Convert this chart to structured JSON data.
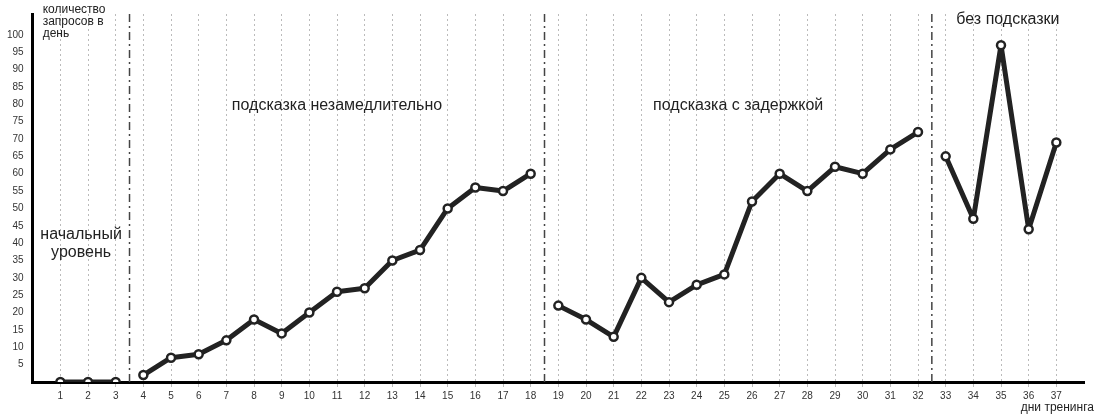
{
  "chart_data": {
    "type": "line",
    "xlabel": "дни тренинга",
    "ylabel": "количество запросов в день",
    "series": [
      {
        "color": "#222222",
        "x": [
          1,
          2,
          3
        ],
        "values": [
          0,
          0,
          0
        ]
      },
      {
        "color": "#222222",
        "x": [
          4,
          5,
          6,
          7,
          8,
          9,
          10,
          11,
          12,
          13,
          14,
          15,
          16,
          17,
          18
        ],
        "values": [
          2,
          7,
          8,
          12,
          18,
          14,
          20,
          26,
          27,
          35,
          38,
          50,
          56,
          55,
          60
        ]
      },
      {
        "color": "#222222",
        "x": [
          19,
          20,
          21,
          22,
          23,
          24,
          25,
          26,
          27,
          28,
          29,
          30,
          31,
          32
        ],
        "values": [
          22,
          18,
          13,
          30,
          23,
          28,
          31,
          52,
          60,
          55,
          62,
          60,
          67,
          72
        ]
      },
      {
        "color": "#222222",
        "x": [
          33,
          34,
          35,
          36,
          37
        ],
        "values": [
          65,
          47,
          97,
          44,
          69
        ]
      }
    ],
    "xlim": [
      0,
      38
    ],
    "xticks": [
      1,
      2,
      3,
      4,
      5,
      6,
      7,
      8,
      9,
      10,
      11,
      12,
      13,
      14,
      15,
      16,
      17,
      18,
      19,
      20,
      21,
      22,
      23,
      24,
      25,
      26,
      27,
      28,
      29,
      30,
      31,
      32,
      33,
      34,
      35,
      36,
      37
    ],
    "ylim": [
      0,
      106
    ],
    "yticks": [
      5,
      10,
      15,
      20,
      25,
      30,
      35,
      40,
      45,
      50,
      55,
      60,
      65,
      70,
      75,
      80,
      85,
      90,
      95,
      100
    ],
    "ref_lines": [
      {
        "axis": "x",
        "value": 3.5,
        "line_style": "dashed",
        "color": "#444444"
      },
      {
        "axis": "x",
        "value": 18.5,
        "line_style": "dashed",
        "color": "#444444"
      },
      {
        "axis": "x",
        "value": 32.5,
        "line_style": "dashed",
        "color": "#444444"
      }
    ],
    "annotations": [
      "начальный уровень",
      "подсказка незамедлительно",
      "подсказка с задержкой",
      "без подсказки"
    ],
    "grid": "x",
    "marker": "circle",
    "line_style": "solid",
    "legend": false
  }
}
